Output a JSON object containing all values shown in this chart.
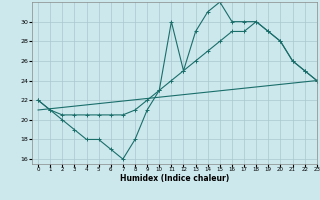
{
  "xlabel": "Humidex (Indice chaleur)",
  "xlim": [
    -0.5,
    23
  ],
  "ylim": [
    15.5,
    32
  ],
  "yticks": [
    16,
    18,
    20,
    22,
    24,
    26,
    28,
    30
  ],
  "xticks": [
    0,
    1,
    2,
    3,
    4,
    5,
    6,
    7,
    8,
    9,
    10,
    11,
    12,
    13,
    14,
    15,
    16,
    17,
    18,
    19,
    20,
    21,
    22,
    23
  ],
  "background_color": "#cce8ed",
  "grid_color": "#aac8ce",
  "line_color": "#1a6e6a",
  "line1": {
    "x": [
      0,
      1,
      2,
      3,
      4,
      5,
      6,
      7,
      8,
      9,
      10,
      11,
      12,
      13,
      14,
      15,
      16,
      17,
      18,
      19,
      20,
      21,
      22,
      23
    ],
    "y": [
      22,
      21,
      20,
      19,
      18,
      18,
      17,
      16,
      18,
      21,
      23,
      30,
      25,
      29,
      31,
      32,
      30,
      30,
      30,
      29,
      28,
      26,
      25,
      24
    ],
    "marker": true
  },
  "line2": {
    "x": [
      0,
      23
    ],
    "y": [
      21,
      24
    ],
    "marker": false
  },
  "line3": {
    "x": [
      0,
      1,
      2,
      3,
      4,
      5,
      6,
      7,
      8,
      9,
      10,
      11,
      12,
      13,
      14,
      15,
      16,
      17,
      18,
      19,
      20,
      21,
      22,
      23
    ],
    "y": [
      22,
      21,
      20.5,
      20.5,
      20.5,
      20.5,
      20.5,
      20.5,
      21,
      22,
      23,
      24,
      25,
      26,
      27,
      28,
      29,
      29,
      30,
      29,
      28,
      26,
      25,
      24
    ],
    "marker": true
  }
}
